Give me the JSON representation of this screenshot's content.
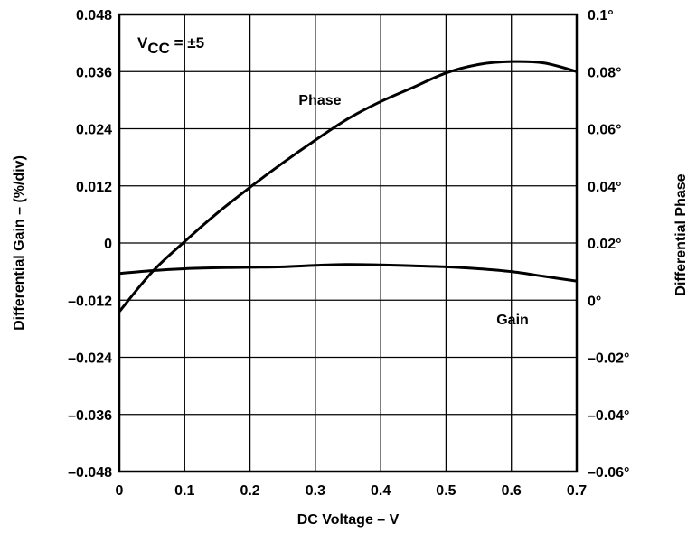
{
  "chart_data": {
    "type": "line",
    "x": [
      0,
      0.05,
      0.1,
      0.15,
      0.2,
      0.25,
      0.3,
      0.35,
      0.4,
      0.45,
      0.5,
      0.55,
      0.6,
      0.65,
      0.7
    ],
    "series": [
      {
        "name": "Phase",
        "axis": "right",
        "values": [
          -0.004,
          0.0098,
          0.0205,
          0.0305,
          0.0395,
          0.048,
          0.056,
          0.0635,
          0.0695,
          0.0745,
          0.0795,
          0.0825,
          0.0835,
          0.083,
          0.08
        ]
      },
      {
        "name": "Gain",
        "axis": "left",
        "values": [
          -0.0064,
          -0.0058,
          -0.0054,
          -0.0052,
          -0.0051,
          -0.005,
          -0.0047,
          -0.0045,
          -0.0046,
          -0.0048,
          -0.005,
          -0.0054,
          -0.006,
          -0.007,
          -0.008
        ]
      }
    ],
    "xlabel": "DC Voltage – V",
    "ylabel_left": "Differential Gain – (%/div)",
    "ylabel_right": "Differential Phase",
    "xlim": [
      0,
      0.7
    ],
    "ylim_left": [
      -0.048,
      0.048
    ],
    "ylim_right": [
      -0.06,
      0.1
    ],
    "x_ticks": [
      "0",
      "0.1",
      "0.2",
      "0.3",
      "0.4",
      "0.5",
      "0.6",
      "0.7"
    ],
    "y_ticks_left": [
      "0.048",
      "0.036",
      "0.024",
      "0.012",
      "0",
      "–0.012",
      "–0.024",
      "–0.036",
      "–0.048"
    ],
    "y_ticks_right": [
      "0.1°",
      "0.08°",
      "0.06°",
      "0.04°",
      "0.02°",
      "0°",
      "–0.02°",
      "–0.04°",
      "–0.06°"
    ],
    "annotation": {
      "prefix": "V",
      "subscript": "CC",
      "suffix": " = ±5"
    },
    "grid": true,
    "curve_labels": {
      "phase": "Phase",
      "gain": "Gain"
    }
  }
}
